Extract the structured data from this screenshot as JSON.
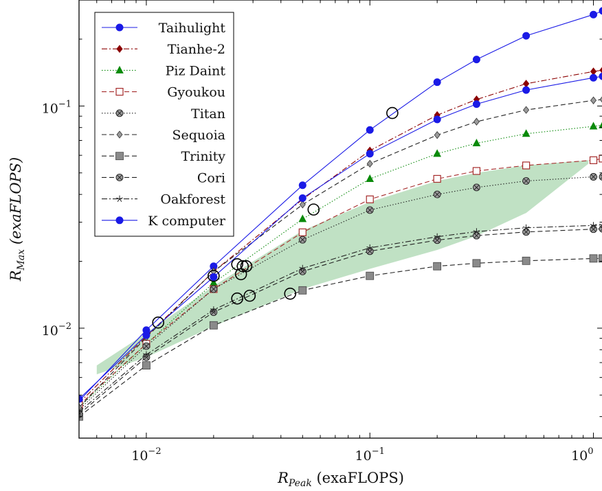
{
  "chart_data": {
    "type": "line",
    "title": "",
    "xlabel": {
      "main": "R",
      "sub": "Peak",
      "unit": "(exaFLOPS)"
    },
    "ylabel": {
      "main": "R",
      "sub": "Max",
      "unit": "(exaFLOPS)"
    },
    "xscale": "log",
    "yscale": "log",
    "xlim": [
      0.005,
      1.1
    ],
    "ylim": [
      0.0032,
      0.3
    ],
    "x_ticks": [
      {
        "value": 0.01,
        "base": "10",
        "exp": "−2"
      },
      {
        "value": 0.1,
        "base": "10",
        "exp": "−1"
      },
      {
        "value": 1,
        "base": "10",
        "exp": "0"
      }
    ],
    "y_ticks": [
      {
        "value": 0.01,
        "base": "10",
        "exp": "−2"
      },
      {
        "value": 0.1,
        "base": "10",
        "exp": "−1"
      }
    ],
    "legend_position": "top-left",
    "series": [
      {
        "name": "Taihulight",
        "color": "#1a1ae6",
        "dash": "",
        "marker": "circle-filled",
        "x": [
          0.005,
          0.01,
          0.02,
          0.05,
          0.1,
          0.2,
          0.3,
          0.5,
          1,
          1.1
        ],
        "y": [
          0.0047,
          0.0098,
          0.019,
          0.044,
          0.078,
          0.128,
          0.162,
          0.207,
          0.258,
          0.268
        ]
      },
      {
        "name": "Tianhe-2",
        "color": "#8b0000",
        "dash": "8 3 2 3",
        "marker": "diamond-filled",
        "x": [
          0.005,
          0.01,
          0.02,
          0.05,
          0.1,
          0.2,
          0.3,
          0.5,
          1,
          1.1
        ],
        "y": [
          0.0046,
          0.0092,
          0.018,
          0.038,
          0.063,
          0.091,
          0.107,
          0.126,
          0.143,
          0.145
        ]
      },
      {
        "name": "Piz Daint",
        "color": "#0a8a0a",
        "dash": "1.5 2.5",
        "marker": "triangle-filled",
        "x": [
          0.005,
          0.01,
          0.02,
          0.05,
          0.1,
          0.2,
          0.3,
          0.5,
          1,
          1.1
        ],
        "y": [
          0.0044,
          0.0085,
          0.016,
          0.031,
          0.047,
          0.061,
          0.068,
          0.075,
          0.081,
          0.082
        ]
      },
      {
        "name": "Gyoukou",
        "color": "#a52a2a",
        "dash": "7 4",
        "marker": "square-open",
        "x": [
          0.005,
          0.01,
          0.02,
          0.05,
          0.1,
          0.2,
          0.3,
          0.5,
          1,
          1.1
        ],
        "y": [
          0.0045,
          0.0085,
          0.015,
          0.027,
          0.038,
          0.047,
          0.051,
          0.054,
          0.057,
          0.058
        ]
      },
      {
        "name": "Titan",
        "color": "#222222",
        "dash": "1.5 2.5",
        "marker": "circle-x",
        "x": [
          0.005,
          0.01,
          0.02,
          0.05,
          0.1,
          0.2,
          0.3,
          0.5,
          1,
          1.1
        ],
        "y": [
          0.0043,
          0.0083,
          0.015,
          0.025,
          0.034,
          0.04,
          0.043,
          0.046,
          0.048,
          0.048
        ]
      },
      {
        "name": "Sequoia",
        "color": "#222222",
        "dash": "7 4",
        "marker": "diamond-gray",
        "x": [
          0.005,
          0.01,
          0.02,
          0.05,
          0.1,
          0.2,
          0.3,
          0.5,
          1,
          1.1
        ],
        "y": [
          0.0044,
          0.0091,
          0.018,
          0.036,
          0.055,
          0.074,
          0.085,
          0.096,
          0.106,
          0.107
        ]
      },
      {
        "name": "Trinity",
        "color": "#222222",
        "dash": "7 4",
        "marker": "square-gray",
        "x": [
          0.005,
          0.01,
          0.02,
          0.05,
          0.1,
          0.2,
          0.3,
          0.5,
          1,
          1.1
        ],
        "y": [
          0.004,
          0.0068,
          0.0103,
          0.0148,
          0.0172,
          0.019,
          0.0196,
          0.0201,
          0.0206,
          0.0206
        ]
      },
      {
        "name": "Cori",
        "color": "#222222",
        "dash": "7 4",
        "marker": "circle-x",
        "x": [
          0.005,
          0.01,
          0.02,
          0.05,
          0.1,
          0.2,
          0.3,
          0.5,
          1,
          1.1
        ],
        "y": [
          0.0041,
          0.0074,
          0.0118,
          0.018,
          0.0222,
          0.0249,
          0.0261,
          0.0271,
          0.0279,
          0.028
        ]
      },
      {
        "name": "Oakforest",
        "color": "#222222",
        "dash": "8 3 2 3",
        "marker": "star",
        "x": [
          0.005,
          0.01,
          0.02,
          0.05,
          0.1,
          0.2,
          0.3,
          0.5,
          1,
          1.1
        ],
        "y": [
          0.0042,
          0.0076,
          0.0121,
          0.0186,
          0.023,
          0.0258,
          0.0272,
          0.0283,
          0.029,
          0.0291
        ]
      },
      {
        "name": "K computer",
        "color": "#1a1ae6",
        "dash": "",
        "marker": "circle-filled",
        "x": [
          0.005,
          0.01,
          0.02,
          0.05,
          0.1,
          0.2,
          0.3,
          0.5,
          1,
          1.1
        ],
        "y": [
          0.0048,
          0.0093,
          0.017,
          0.0385,
          0.061,
          0.087,
          0.102,
          0.118,
          0.134,
          0.136
        ]
      }
    ],
    "shaded_region": {
      "color": "#2e9a3a",
      "opacity": 0.3,
      "upper": {
        "x": [
          0.006,
          0.01,
          0.02,
          0.05,
          0.1,
          0.2,
          0.3,
          0.5,
          0.95
        ],
        "y": [
          0.0068,
          0.0095,
          0.0155,
          0.0275,
          0.037,
          0.046,
          0.05,
          0.054,
          0.057
        ]
      },
      "lower": {
        "x": [
          0.006,
          0.01,
          0.02,
          0.05,
          0.1,
          0.2,
          0.3,
          0.5,
          0.95
        ],
        "y": [
          0.0062,
          0.0074,
          0.0102,
          0.015,
          0.0185,
          0.0225,
          0.026,
          0.033,
          0.055
        ]
      }
    },
    "open_circles": {
      "x": [
        0.0113,
        0.02,
        0.0255,
        0.0265,
        0.0255,
        0.027,
        0.029,
        0.028,
        0.044,
        0.056,
        0.126
      ],
      "y": [
        0.0106,
        0.0172,
        0.0194,
        0.0175,
        0.0136,
        0.019,
        0.014,
        0.019,
        0.0143,
        0.0342,
        0.093
      ]
    }
  }
}
